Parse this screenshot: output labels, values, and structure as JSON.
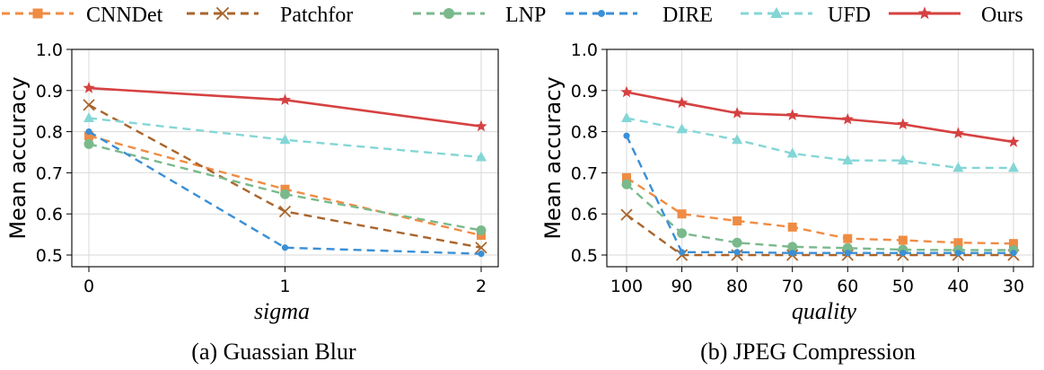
{
  "legend": [
    "CNNDet",
    "Patchfor",
    "LNP",
    "DIRE",
    "UFD",
    "Ours"
  ],
  "colors": {
    "CNNDet": "#ef8c43",
    "Patchfor": "#a9652c",
    "LNP": "#7ab98c",
    "DIRE": "#3a8fd6",
    "UFD": "#84d6d6",
    "Ours": "#d64141"
  },
  "chart_data": [
    {
      "type": "line",
      "title": "",
      "caption": "(a) Guassian Blur",
      "xlabel": "sigma",
      "ylabel": "Mean accuracy",
      "categories": [
        "0",
        "1",
        "2"
      ],
      "ylim": [
        0.5,
        1.0
      ],
      "yticks": [
        "0.5",
        "0.6",
        "0.7",
        "0.8",
        "0.9",
        "1.0"
      ],
      "grid": true,
      "series": [
        {
          "name": "CNNDet",
          "values": [
            0.79,
            0.66,
            0.548
          ]
        },
        {
          "name": "Patchfor",
          "values": [
            0.865,
            0.606,
            0.518
          ]
        },
        {
          "name": "LNP",
          "values": [
            0.77,
            0.648,
            0.56
          ]
        },
        {
          "name": "DIRE",
          "values": [
            0.8,
            0.518,
            0.503
          ]
        },
        {
          "name": "UFD",
          "values": [
            0.833,
            0.78,
            0.738
          ]
        },
        {
          "name": "Ours",
          "values": [
            0.906,
            0.877,
            0.813
          ]
        }
      ]
    },
    {
      "type": "line",
      "title": "",
      "caption": "(b) JPEG Compression",
      "xlabel": "quality",
      "ylabel": "Mean accuracy",
      "categories": [
        "100",
        "90",
        "80",
        "70",
        "60",
        "50",
        "40",
        "30"
      ],
      "ylim": [
        0.5,
        1.0
      ],
      "yticks": [
        "0.5",
        "0.6",
        "0.7",
        "0.8",
        "0.9",
        "1.0"
      ],
      "grid": true,
      "series": [
        {
          "name": "CNNDet",
          "values": [
            0.688,
            0.6,
            0.583,
            0.568,
            0.54,
            0.536,
            0.53,
            0.528
          ]
        },
        {
          "name": "Patchfor",
          "values": [
            0.598,
            0.5,
            0.5,
            0.5,
            0.5,
            0.5,
            0.5,
            0.5
          ]
        },
        {
          "name": "LNP",
          "values": [
            0.672,
            0.553,
            0.53,
            0.52,
            0.517,
            0.513,
            0.512,
            0.512
          ]
        },
        {
          "name": "DIRE",
          "values": [
            0.79,
            0.507,
            0.507,
            0.505,
            0.505,
            0.505,
            0.505,
            0.505
          ]
        },
        {
          "name": "UFD",
          "values": [
            0.833,
            0.806,
            0.78,
            0.747,
            0.73,
            0.73,
            0.712,
            0.712
          ]
        },
        {
          "name": "Ours",
          "values": [
            0.896,
            0.87,
            0.845,
            0.84,
            0.83,
            0.818,
            0.796,
            0.775
          ]
        }
      ]
    }
  ]
}
